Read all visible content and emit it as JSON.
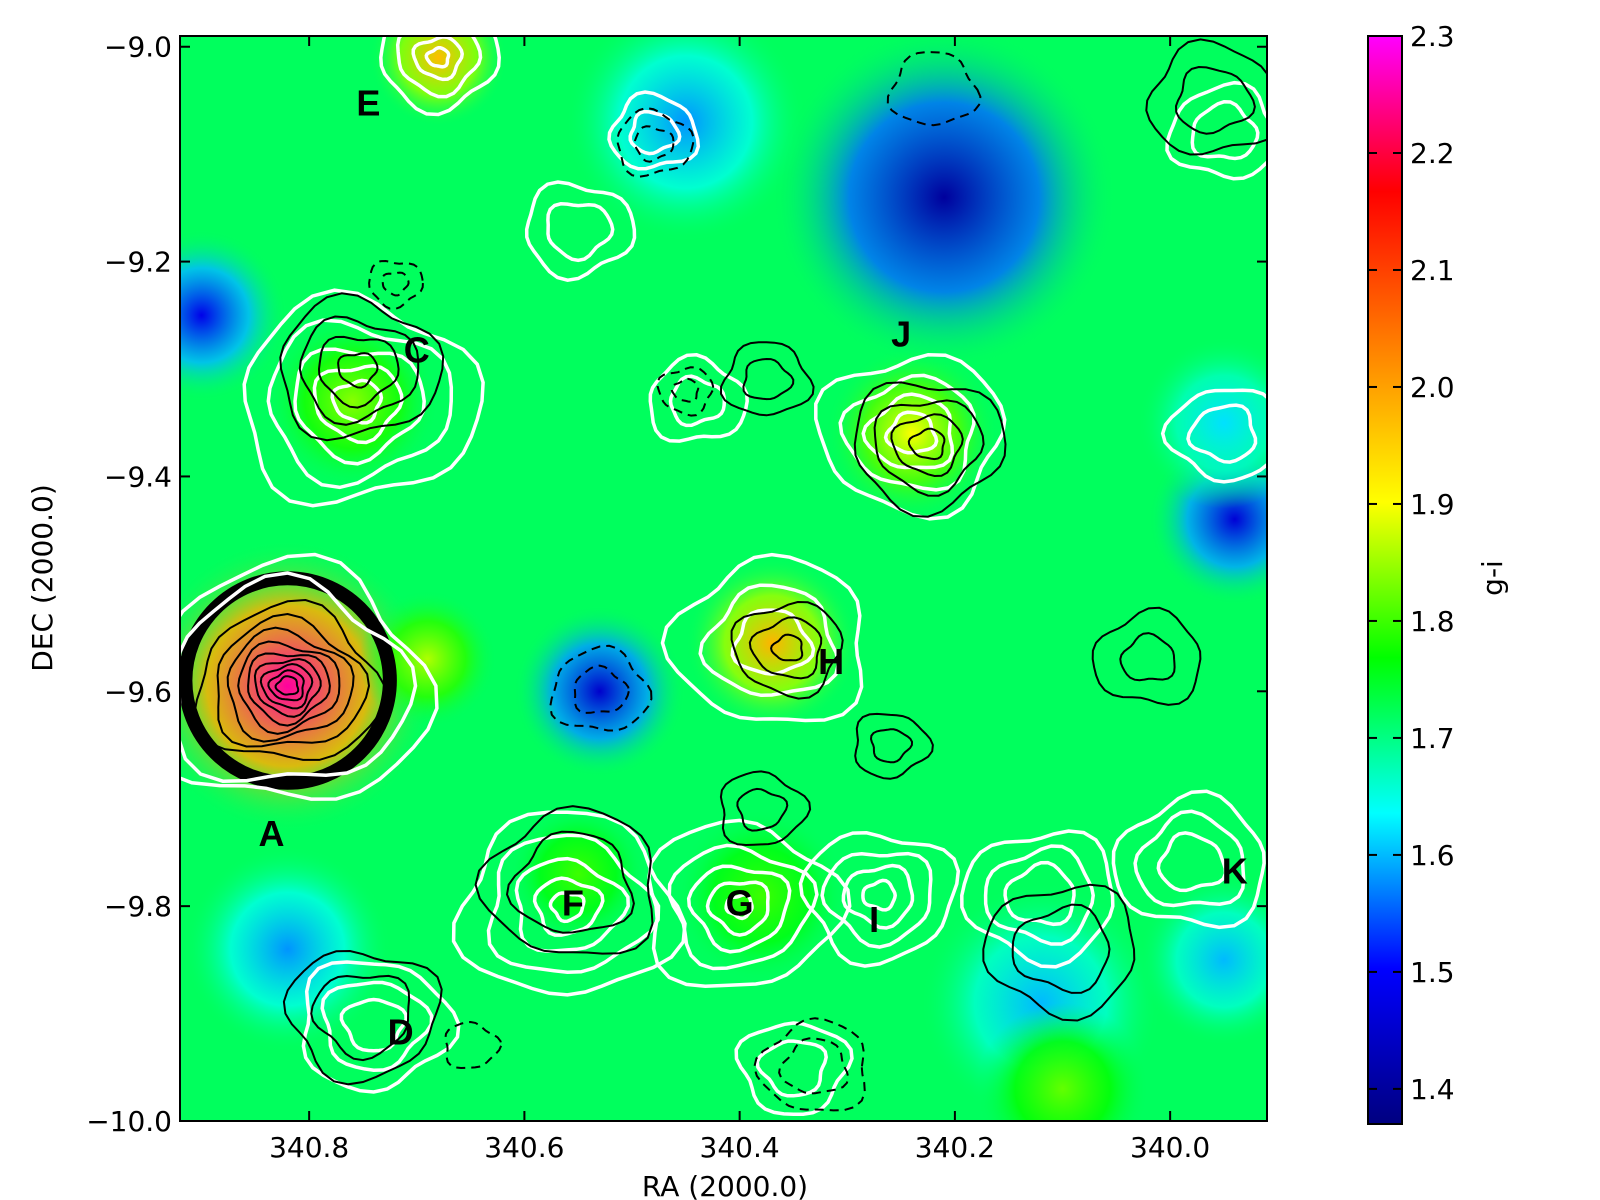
{
  "chart_data": {
    "type": "heatmap",
    "title": "",
    "xlabel": "RA (2000.0)",
    "ylabel": "DEC (2000.0)",
    "xlim": [
      340.92,
      339.91
    ],
    "ylim": [
      -10.0,
      -8.99
    ],
    "x_ticks": [
      340.8,
      340.6,
      340.4,
      340.2,
      340.0
    ],
    "x_tick_labels": [
      "340.8",
      "340.6",
      "340.4",
      "340.2",
      "340.0"
    ],
    "y_ticks": [
      -9.0,
      -9.2,
      -9.4,
      -9.6,
      -9.8,
      -10.0
    ],
    "y_tick_labels": [
      "−9.0",
      "−9.2",
      "−9.4",
      "−9.6",
      "−9.8",
      "−10.0"
    ],
    "colorbar": {
      "label": "g-i",
      "min": 1.37,
      "max": 2.3,
      "ticks": [
        2.3,
        2.2,
        2.1,
        2.0,
        1.9,
        1.8,
        1.7,
        1.6,
        1.5,
        1.4
      ],
      "tick_labels": [
        "2.3",
        "2.2",
        "2.1",
        "2.0",
        "1.9",
        "1.8",
        "1.7",
        "1.6",
        "1.5",
        "1.4"
      ],
      "colormap": [
        "#000080",
        "#0000ff",
        "#00ffff",
        "#00ff00",
        "#ffff00",
        "#ff8000",
        "#ff0000",
        "#ff00ff"
      ]
    },
    "background_value": 1.72,
    "color_features": [
      {
        "ra": 340.82,
        "dec": -9.595,
        "r": 0.085,
        "value": 2.25
      },
      {
        "ra": 340.37,
        "dec": -9.555,
        "r": 0.05,
        "value": 1.98
      },
      {
        "ra": 340.24,
        "dec": -9.36,
        "r": 0.05,
        "value": 1.9
      },
      {
        "ra": 340.76,
        "dec": -9.33,
        "r": 0.05,
        "value": 1.84
      },
      {
        "ra": 340.68,
        "dec": -9.01,
        "r": 0.04,
        "value": 1.97
      },
      {
        "ra": 340.69,
        "dec": -9.57,
        "r": 0.04,
        "value": 1.86
      },
      {
        "ra": 340.21,
        "dec": -9.14,
        "r": 0.1,
        "value": 1.4
      },
      {
        "ra": 340.53,
        "dec": -9.6,
        "r": 0.05,
        "value": 1.45
      },
      {
        "ra": 339.94,
        "dec": -9.44,
        "r": 0.05,
        "value": 1.46
      },
      {
        "ra": 340.9,
        "dec": -9.25,
        "r": 0.05,
        "value": 1.48
      },
      {
        "ra": 340.82,
        "dec": -9.84,
        "r": 0.06,
        "value": 1.58
      },
      {
        "ra": 340.45,
        "dec": -9.07,
        "r": 0.07,
        "value": 1.58
      },
      {
        "ra": 340.12,
        "dec": -9.89,
        "r": 0.07,
        "value": 1.6
      },
      {
        "ra": 339.95,
        "dec": -9.85,
        "r": 0.05,
        "value": 1.6
      },
      {
        "ra": 340.55,
        "dec": -9.77,
        "r": 0.04,
        "value": 1.8
      },
      {
        "ra": 340.38,
        "dec": -9.79,
        "r": 0.05,
        "value": 1.8
      },
      {
        "ra": 340.1,
        "dec": -9.97,
        "r": 0.05,
        "value": 1.82
      },
      {
        "ra": 339.95,
        "dec": -9.35,
        "r": 0.05,
        "value": 1.62
      }
    ],
    "source_marker": {
      "ra": 340.82,
      "dec": -9.59,
      "r": 0.095,
      "color": "#000000"
    },
    "contours": [
      {
        "style": "black-solid",
        "ra": 340.82,
        "dec": -9.595,
        "levels": [
          0.085,
          0.07,
          0.058,
          0.047,
          0.038,
          0.03,
          0.023,
          0.016,
          0.01
        ]
      },
      {
        "style": "black-solid",
        "ra": 340.755,
        "dec": -9.3,
        "levels": [
          0.075,
          0.055,
          0.037,
          0.018
        ]
      },
      {
        "style": "black-solid",
        "ra": 340.225,
        "dec": -9.37,
        "levels": [
          0.07,
          0.05,
          0.032,
          0.016
        ]
      },
      {
        "style": "black-solid",
        "ra": 340.355,
        "dec": -9.56,
        "levels": [
          0.05,
          0.032,
          0.014
        ]
      },
      {
        "style": "black-solid",
        "ra": 340.555,
        "dec": -9.78,
        "levels": [
          0.08,
          0.055
        ]
      },
      {
        "style": "black-solid",
        "ra": 340.375,
        "dec": -9.31,
        "levels": [
          0.04,
          0.022
        ]
      },
      {
        "style": "black-solid",
        "ra": 340.38,
        "dec": -9.71,
        "levels": [
          0.04,
          0.022
        ]
      },
      {
        "style": "black-solid",
        "ra": 340.75,
        "dec": -9.9,
        "levels": [
          0.07,
          0.045
        ]
      },
      {
        "style": "black-solid",
        "ra": 340.1,
        "dec": -9.84,
        "levels": [
          0.07,
          0.045
        ]
      },
      {
        "style": "black-solid",
        "ra": 340.02,
        "dec": -9.57,
        "levels": [
          0.05,
          0.025
        ]
      },
      {
        "style": "black-solid",
        "ra": 339.96,
        "dec": -9.05,
        "levels": [
          0.06,
          0.035
        ]
      },
      {
        "style": "black-solid",
        "ra": 340.26,
        "dec": -9.65,
        "levels": [
          0.035,
          0.018
        ]
      },
      {
        "style": "white-solid",
        "ra": 340.82,
        "dec": -9.595,
        "levels": [
          0.13,
          0.11
        ]
      },
      {
        "style": "white-solid",
        "ra": 340.755,
        "dec": -9.33,
        "levels": [
          0.11,
          0.085,
          0.06,
          0.04,
          0.022
        ]
      },
      {
        "style": "white-solid",
        "ra": 340.68,
        "dec": -9.01,
        "levels": [
          0.055,
          0.038,
          0.022,
          0.01
        ]
      },
      {
        "style": "white-solid",
        "ra": 340.24,
        "dec": -9.36,
        "levels": [
          0.085,
          0.06,
          0.04,
          0.022
        ]
      },
      {
        "style": "white-solid",
        "ra": 340.37,
        "dec": -9.555,
        "levels": [
          0.09,
          0.06,
          0.035
        ]
      },
      {
        "style": "white-solid",
        "ra": 340.56,
        "dec": -9.8,
        "levels": [
          0.1,
          0.075,
          0.05,
          0.03,
          0.015
        ]
      },
      {
        "style": "white-solid",
        "ra": 340.4,
        "dec": -9.8,
        "levels": [
          0.09,
          0.065,
          0.045,
          0.028,
          0.012
        ]
      },
      {
        "style": "white-solid",
        "ra": 340.27,
        "dec": -9.79,
        "levels": [
          0.07,
          0.05,
          0.032,
          0.015
        ]
      },
      {
        "style": "white-solid",
        "ra": 340.12,
        "dec": -9.79,
        "levels": [
          0.07,
          0.05,
          0.032
        ]
      },
      {
        "style": "white-solid",
        "ra": 339.98,
        "dec": -9.76,
        "levels": [
          0.07,
          0.05,
          0.03
        ]
      },
      {
        "style": "white-solid",
        "ra": 340.48,
        "dec": -9.08,
        "levels": [
          0.04,
          0.022
        ]
      },
      {
        "style": "white-solid",
        "ra": 340.74,
        "dec": -9.91,
        "levels": [
          0.07,
          0.048,
          0.028
        ]
      },
      {
        "style": "white-solid",
        "ra": 340.35,
        "dec": -9.95,
        "levels": [
          0.05,
          0.03
        ]
      },
      {
        "style": "white-solid",
        "ra": 339.95,
        "dec": -9.36,
        "levels": [
          0.05,
          0.03
        ]
      },
      {
        "style": "white-solid",
        "ra": 339.95,
        "dec": -9.08,
        "levels": [
          0.05,
          0.03
        ]
      },
      {
        "style": "white-solid",
        "ra": 340.44,
        "dec": -9.33,
        "levels": [
          0.045,
          0.025
        ]
      },
      {
        "style": "white-solid",
        "ra": 340.55,
        "dec": -9.17,
        "levels": [
          0.05,
          0.03
        ]
      },
      {
        "style": "black-dashed",
        "ra": 340.53,
        "dec": -9.6,
        "levels": [
          0.045,
          0.025
        ]
      },
      {
        "style": "black-dashed",
        "ra": 340.48,
        "dec": -9.09,
        "levels": [
          0.035,
          0.018
        ]
      },
      {
        "style": "black-dashed",
        "ra": 340.72,
        "dec": -9.22,
        "levels": [
          0.025,
          0.012
        ]
      },
      {
        "style": "black-dashed",
        "ra": 340.45,
        "dec": -9.32,
        "levels": [
          0.025,
          0.012
        ]
      },
      {
        "style": "black-dashed",
        "ra": 340.33,
        "dec": -9.95,
        "levels": [
          0.05,
          0.03
        ]
      },
      {
        "style": "black-dashed",
        "ra": 340.22,
        "dec": -9.04,
        "levels": [
          0.04
        ]
      },
      {
        "style": "black-dashed",
        "ra": 340.65,
        "dec": -9.93,
        "levels": [
          0.025
        ]
      }
    ],
    "annotations": [
      {
        "text": "A",
        "ra": 340.835,
        "dec": -9.735
      },
      {
        "text": "C",
        "ra": 340.7,
        "dec": -9.285
      },
      {
        "text": "D",
        "ra": 340.715,
        "dec": -9.92
      },
      {
        "text": "E",
        "ra": 340.745,
        "dec": -9.055
      },
      {
        "text": "F",
        "ra": 340.555,
        "dec": -9.8
      },
      {
        "text": "G",
        "ra": 340.4,
        "dec": -9.8
      },
      {
        "text": "H",
        "ra": 340.315,
        "dec": -9.575
      },
      {
        "text": "I",
        "ra": 340.275,
        "dec": -9.815
      },
      {
        "text": "J",
        "ra": 340.25,
        "dec": -9.27
      },
      {
        "text": "K",
        "ra": 339.94,
        "dec": -9.77
      }
    ]
  }
}
